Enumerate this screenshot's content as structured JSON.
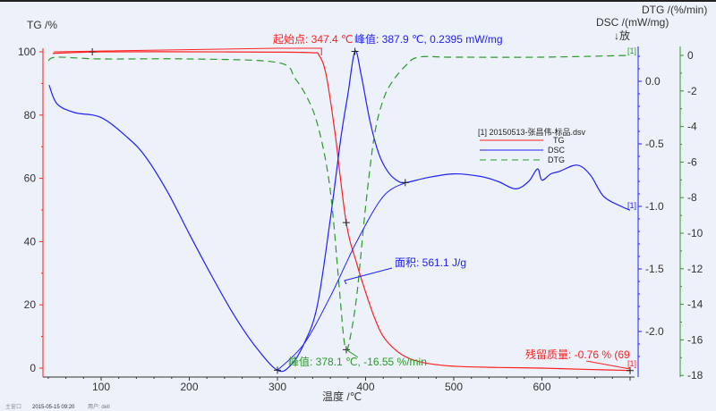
{
  "chart_data": {
    "type": "line",
    "xlabel": "温度 /℃",
    "xlim": [
      34,
      705
    ],
    "xticks": [
      100,
      200,
      300,
      400,
      500,
      600
    ],
    "axes": {
      "tg": {
        "label": "TG /%",
        "lim": [
          0,
          100
        ],
        "ticks": [
          0,
          20,
          40,
          60,
          80,
          100
        ],
        "color": "#ff2020"
      },
      "dsc": {
        "label": "DSC /(mW/mg)",
        "direction": "↓放",
        "lim": [
          -2.3,
          0.24
        ],
        "ticks": [
          "0.0",
          "-0.5",
          "-1.0",
          "-1.5",
          "-2.0"
        ],
        "color": "#2020ff"
      },
      "dtg": {
        "label": "DTG /(%/min)",
        "lim": [
          -18,
          0
        ],
        "ticks": [
          0,
          -2,
          -4,
          -6,
          -8,
          -10,
          -12,
          -14,
          -16,
          -18
        ],
        "color": "#2a9a2a"
      }
    },
    "series": [
      {
        "name": "TG",
        "axis": "tg",
        "style": "solid",
        "color": "#ff2020",
        "x": [
          45,
          100,
          200,
          300,
          340,
          347,
          355,
          365,
          378,
          390,
          400,
          410,
          420,
          435,
          450,
          470,
          500,
          550,
          600,
          650,
          700
        ],
        "y": [
          99.5,
          100,
          100,
          99.9,
          99.7,
          99,
          93,
          75,
          46,
          33,
          24,
          16,
          10,
          5.5,
          3,
          1.5,
          0.6,
          0.2,
          0,
          -0.4,
          -0.76
        ]
      },
      {
        "name": "DSC",
        "axis": "dsc",
        "style": "solid",
        "color": "#2020ff",
        "x": [
          41,
          50,
          70,
          100,
          130,
          150,
          175,
          200,
          225,
          250,
          275,
          300,
          315,
          330,
          345,
          360,
          372,
          380,
          387.9,
          395,
          405,
          415,
          425,
          435,
          445,
          470,
          500,
          530,
          550,
          570,
          585,
          595,
          600,
          610,
          620,
          640,
          655,
          670,
          690,
          700
        ],
        "y": [
          -0.03,
          -0.18,
          -0.25,
          -0.29,
          -0.45,
          -0.6,
          -0.88,
          -1.22,
          -1.55,
          -1.86,
          -2.12,
          -2.31,
          -2.27,
          -2.1,
          -1.8,
          -1.1,
          -0.45,
          -0.1,
          0.2395,
          0.05,
          -0.32,
          -0.58,
          -0.72,
          -0.79,
          -0.81,
          -0.77,
          -0.74,
          -0.76,
          -0.8,
          -0.86,
          -0.8,
          -0.7,
          -0.79,
          -0.74,
          -0.72,
          -0.67,
          -0.75,
          -0.92,
          -1.0,
          -1.03
        ]
      },
      {
        "name": "DTG",
        "axis": "dtg",
        "style": "dashed",
        "color": "#2a9a2a",
        "x": [
          40,
          50,
          100,
          200,
          300,
          320,
          335,
          345,
          355,
          362,
          370,
          375,
          378.1,
          382,
          390,
          400,
          410,
          420,
          430,
          445,
          460,
          500,
          600,
          700
        ],
        "y": [
          -0.3,
          -0.1,
          -0.2,
          -0.2,
          -0.4,
          -1.3,
          -2.5,
          -3.8,
          -6,
          -8.5,
          -13,
          -15.8,
          -16.55,
          -16,
          -13.5,
          -8.5,
          -4.5,
          -2.5,
          -1.5,
          -0.6,
          -0.1,
          -0.1,
          -0.1,
          0
        ]
      }
    ],
    "baseline": {
      "axis": "dsc",
      "x": [
        300,
        330,
        360,
        390,
        420,
        445
      ],
      "y": [
        -2.31,
        -2.1,
        -1.72,
        -1.28,
        -0.92,
        -0.81
      ]
    },
    "legend": {
      "file": "[1] 20150513-张昌伟-标品.dsv",
      "entries": [
        "TG",
        "DSC",
        "DTG"
      ],
      "placement": "right-center"
    },
    "annotations": {
      "onset": "起始点: 347.4 ℃",
      "dsc_peak": "峰值: 387.9 ℃, 0.2395 mW/mg",
      "area": "面积: 561.1 J/g",
      "dtg_peak": "峰值: 378.1 ℃, -16.55 %/min",
      "residue": "残留质量: -0.76 % (69",
      "curve_tag": "[1]"
    }
  },
  "footer": {
    "window": "主窗口",
    "datetime": "2015-05-15 09:20",
    "user": "用户: dell"
  }
}
